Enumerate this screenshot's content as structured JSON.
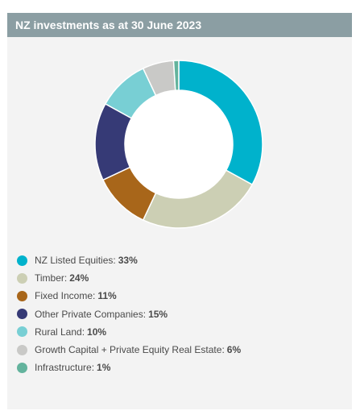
{
  "header": {
    "title": "NZ investments as at 30 June 2023"
  },
  "chart_data": {
    "type": "pie",
    "variant": "donut",
    "title": "NZ investments as at 30 June 2023",
    "start_angle_deg": 0,
    "direction": "clockwise",
    "legend_position": "bottom",
    "slices": [
      {
        "label": "NZ Listed Equities:",
        "value": 33,
        "value_label": "33%",
        "color": "#00b2cc"
      },
      {
        "label": "Timber:",
        "value": 24,
        "value_label": "24%",
        "color": "#cccfb4"
      },
      {
        "label": "Fixed Income:",
        "value": 11,
        "value_label": "11%",
        "color": "#a8661a"
      },
      {
        "label": "Other Private Companies:",
        "value": 15,
        "value_label": "15%",
        "color": "#363a76"
      },
      {
        "label": "Rural Land:",
        "value": 10,
        "value_label": "10%",
        "color": "#78cfd4"
      },
      {
        "label": "Growth Capital + Private Equity Real Estate:",
        "value": 6,
        "value_label": "6%",
        "color": "#c9c9c7"
      },
      {
        "label": "Infrastructure:",
        "value": 1,
        "value_label": "1%",
        "color": "#63b39d"
      }
    ]
  }
}
